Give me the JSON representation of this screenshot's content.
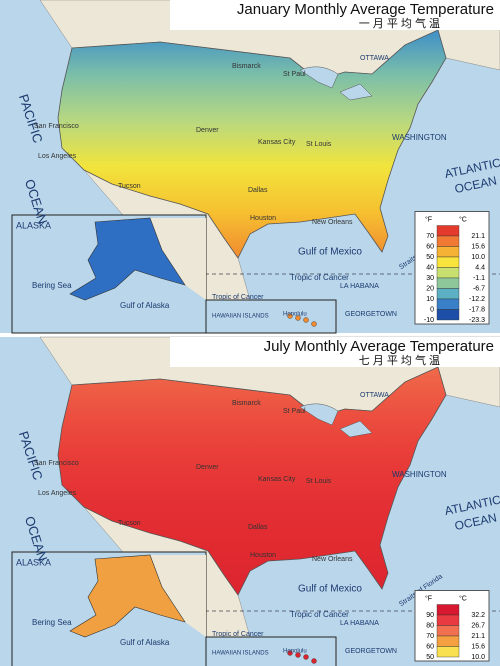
{
  "panels": [
    {
      "title": "January Monthly Average Temperature",
      "subtitle": "一 月 平 均 气 温",
      "land_colors": [
        "#3f8fc8",
        "#7cbfa8",
        "#b8d880",
        "#f2e43c",
        "#f6c030",
        "#f08a30"
      ],
      "alaska_color": "#2e6fc4",
      "legend": {
        "unit_f": "°F",
        "unit_c": "°C",
        "rows": [
          {
            "f": "70",
            "c": "21.1",
            "color": "#e43a2c"
          },
          {
            "f": "60",
            "c": "15.6",
            "color": "#f07a34"
          },
          {
            "f": "50",
            "c": "10.0",
            "color": "#f6b234"
          },
          {
            "f": "40",
            "c": "4.4",
            "color": "#f8e43c"
          },
          {
            "f": "30",
            "c": "-1.1",
            "color": "#c8e070"
          },
          {
            "f": "20",
            "c": "-6.7",
            "color": "#8ec89a"
          },
          {
            "f": "10",
            "c": "-12.2",
            "color": "#5cb0c4"
          },
          {
            "f": "0",
            "c": "-17.8",
            "color": "#3a80c8"
          },
          {
            "f": "-10",
            "c": "-23.3",
            "color": "#1e4fa8"
          }
        ]
      },
      "labels": [
        "PACIFIC",
        "OCEAN",
        "ATLANTIC",
        "OCEAN",
        "Gulf of Mexico",
        "Tropic of Cancer",
        "ALASKA",
        "Bering Sea",
        "Gulf of Alaska",
        "Tropic of Cancer",
        "HAWAIIAN ISLANDS",
        "Honolulu",
        "GEORGETOWN",
        "LA HABANA",
        "Straits of Florida",
        "OTTAWA",
        "WASHINGTON",
        "Bismarck",
        "St Paul",
        "Denver",
        "Kansas City",
        "St Louis",
        "Dallas",
        "Houston",
        "New Orleans",
        "Los Angeles",
        "San Francisco",
        "Tucson"
      ]
    },
    {
      "title": "July Monthly Average Temperature",
      "subtitle": "七 月 平 均 气 温",
      "land_colors": [
        "#f06a4a",
        "#ec5040",
        "#e83c38",
        "#e43034",
        "#e02a30",
        "#dc2430"
      ],
      "alaska_color": "#f0a040",
      "legend": {
        "unit_f": "°F",
        "unit_c": "°C",
        "rows": [
          {
            "f": "90",
            "c": "32.2",
            "color": "#d8182e"
          },
          {
            "f": "80",
            "c": "26.7",
            "color": "#e83a40"
          },
          {
            "f": "70",
            "c": "21.1",
            "color": "#f07050"
          },
          {
            "f": "60",
            "c": "15.6",
            "color": "#f4a040"
          },
          {
            "f": "50",
            "c": "10.0",
            "color": "#f8e050"
          }
        ]
      },
      "labels": [
        "PACIFIC",
        "OCEAN",
        "ATLANTIC",
        "OCEAN",
        "Gulf of Mexico",
        "Tropic of Cancer",
        "ALASKA",
        "Bering Sea",
        "Gulf of Alaska",
        "Tropic of Cancer",
        "HAWAIIAN ISLANDS",
        "Honolulu",
        "GEORGETOWN",
        "LA HABANA",
        "Straits of Florida",
        "OTTAWA",
        "WASHINGTON",
        "Bismarck",
        "St Paul",
        "Denver",
        "Kansas City",
        "St Louis",
        "Dallas",
        "Houston",
        "New Orleans",
        "Los Angeles",
        "San Francisco",
        "Tucson"
      ]
    }
  ]
}
